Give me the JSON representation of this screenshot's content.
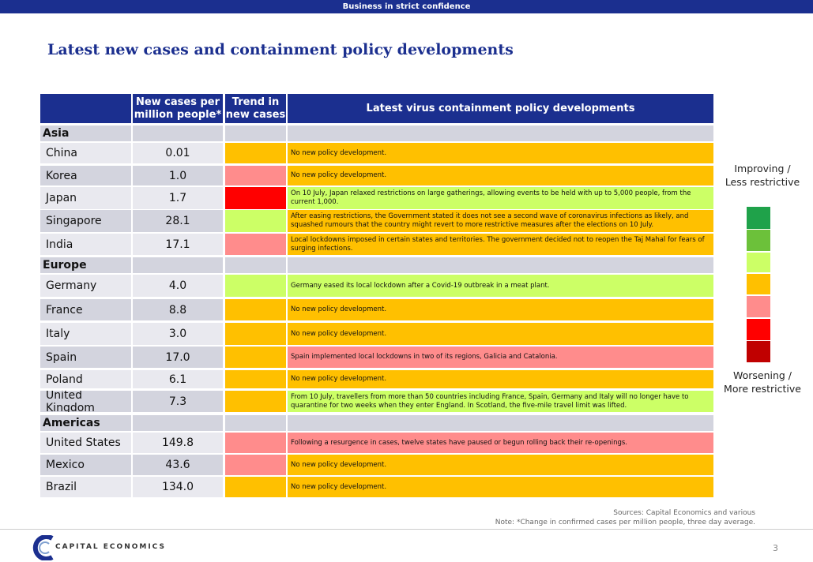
{
  "banner": "Business in strict confidence",
  "title": "Latest new cases and containment policy developments",
  "headers": {
    "cases": "New cases per million people*",
    "trend": "Trend in new cases",
    "policy": "Latest virus containment policy developments"
  },
  "colors": {
    "dark_green": "#1fa24a",
    "green": "#6cc13a",
    "light_green": "#ccff66",
    "orange": "#ffc000",
    "pink": "#ff8c8c",
    "red": "#ff0000",
    "dark_red": "#c00000",
    "header": "#1b2f8f"
  },
  "rows": [
    {
      "region": "Asia"
    },
    {
      "country": "China",
      "cases": "0.01",
      "trend": "orange",
      "policy_color": "orange",
      "policy": "No new policy development."
    },
    {
      "country": "Korea",
      "cases": "1.0",
      "trend": "pink",
      "policy_color": "orange",
      "policy": "No new policy development."
    },
    {
      "country": "Japan",
      "cases": "1.7",
      "trend": "red",
      "policy_color": "light_green",
      "policy": "On 10 July, Japan relaxed restrictions on large gatherings, allowing events to be held with up to 5,000 people, from the current 1,000."
    },
    {
      "country": "Singapore",
      "cases": "28.1",
      "trend": "light_green",
      "policy_color": "orange",
      "policy": "After easing restrictions, the Government stated it does not see a second wave of coronavirus infections as likely, and squashed rumours that the country might revert to more restrictive measures after the elections on 10 July."
    },
    {
      "country": "India",
      "cases": "17.1",
      "trend": "pink",
      "policy_color": "orange",
      "policy": "Local lockdowns imposed in certain states and territories. The government decided not to reopen the Taj Mahal for fears of surging infections."
    },
    {
      "region": "Europe"
    },
    {
      "country": "Germany",
      "cases": "4.0",
      "trend": "light_green",
      "policy_color": "light_green",
      "policy": "Germany eased its local lockdown after a Covid-19 outbreak in a meat plant."
    },
    {
      "country": "France",
      "cases": "8.8",
      "trend": "orange",
      "policy_color": "orange",
      "policy": "No new policy development."
    },
    {
      "country": "Italy",
      "cases": "3.0",
      "trend": "orange",
      "policy_color": "orange",
      "policy": "No new policy development."
    },
    {
      "country": "Spain",
      "cases": "17.0",
      "trend": "orange",
      "policy_color": "pink",
      "policy": "Spain implemented local lockdowns in two of its regions, Galicia and Catalonia."
    },
    {
      "country": "Poland",
      "cases": "6.1",
      "trend": "orange",
      "policy_color": "orange",
      "policy": "No new policy development."
    },
    {
      "country": "United Kingdom",
      "cases": "7.3",
      "trend": "orange",
      "policy_color": "light_green",
      "policy": "From 10 July, travellers from more than 50 countries including France, Spain, Germany and Italy will no longer have to quarantine for two weeks when they enter England. In Scotland, the five-mile travel limit was lifted."
    },
    {
      "region": "Americas"
    },
    {
      "country": "United States",
      "cases": "149.8",
      "trend": "pink",
      "policy_color": "pink",
      "policy": "Following a resurgence in cases, twelve states have paused or begun rolling back their re-openings."
    },
    {
      "country": "Mexico",
      "cases": "43.6",
      "trend": "pink",
      "policy_color": "orange",
      "policy": "No new policy development."
    },
    {
      "country": "Brazil",
      "cases": "134.0",
      "trend": "orange",
      "policy_color": "orange",
      "policy": "No new policy development."
    }
  ],
  "legend": {
    "top": "Improving / Less restrictive",
    "bottom": "Worsening / More restrictive",
    "scale": [
      "dark_green",
      "green",
      "light_green",
      "orange",
      "pink",
      "red",
      "dark_red"
    ]
  },
  "footer": {
    "sources": "Sources: Capital Economics and various",
    "note": "Note: *Change in confirmed cases per million people, three day average.",
    "logo": "CAPITAL ECONOMICS",
    "page": "3"
  }
}
